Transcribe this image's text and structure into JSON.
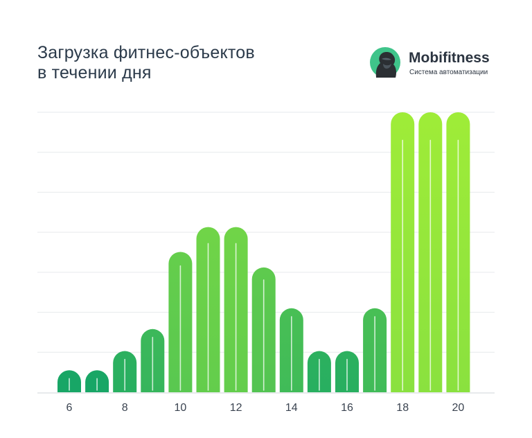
{
  "title": {
    "line1": "Загрузка фитнес-объектов",
    "line2": "в течении дня"
  },
  "brand": {
    "name": "Mobifitness",
    "subtitle": "Система автоматизации",
    "icon": "gorilla-logo-icon",
    "logo_color": "#3fc48a"
  },
  "chart_data": {
    "type": "bar",
    "title": "Загрузка фитнес-объектов в течении дня",
    "xlabel": "",
    "ylabel": "",
    "categories": [
      "6",
      "7",
      "8",
      "9",
      "10",
      "11",
      "12",
      "13",
      "14",
      "15",
      "16",
      "17",
      "18",
      "19",
      "20"
    ],
    "x_tick_labels": [
      "6",
      "8",
      "10",
      "12",
      "14",
      "16",
      "18",
      "20"
    ],
    "values": [
      0.55,
      0.55,
      1.03,
      1.58,
      3.51,
      4.13,
      4.13,
      3.12,
      2.1,
      1.03,
      1.03,
      2.1,
      7.0,
      7.0,
      7.0
    ],
    "ylim": [
      0,
      7
    ],
    "y_gridlines": [
      1,
      2,
      3,
      4,
      5,
      6,
      7
    ],
    "y_tick_labels": false,
    "grid": true,
    "colors": {
      "low": "#14a467",
      "high": "#9fec38",
      "grid": "#e6e9ec",
      "axis": "#cfd4d8"
    }
  }
}
